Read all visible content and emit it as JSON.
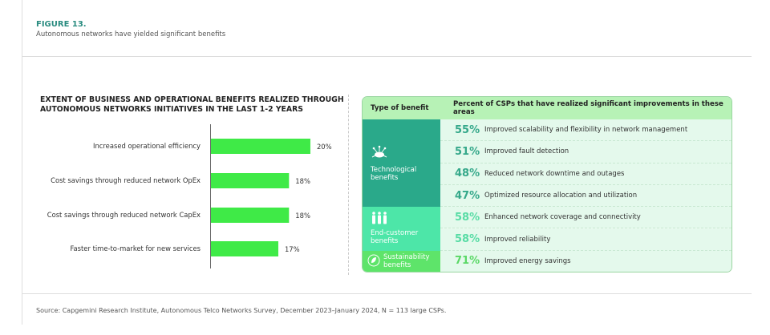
{
  "header": {
    "figure_label": "FIGURE 13.",
    "subtitle": "Autonomous networks have yielded significant benefits"
  },
  "chart_data": {
    "type": "bar",
    "title": "EXTENT OF BUSINESS AND OPERATIONAL BENEFITS REALIZED THROUGH AUTONOMOUS NETWORKS INITIATIVES IN THE LAST 1-2 YEARS",
    "categories": [
      "Increased operational efficiency",
      "Cost savings through reduced network OpEx",
      "Cost savings through reduced network CapEx",
      "Faster time-to-market for new services"
    ],
    "values": [
      20,
      18,
      18,
      17
    ],
    "value_labels": [
      "20%",
      "18%",
      "18%",
      "17%"
    ],
    "unit": "%",
    "orientation": "horizontal",
    "bar_color": "#3fea47",
    "grid": false
  },
  "table": {
    "headers": [
      "Type of benefit",
      "Percent of CSPs that have realized significant improvements in these areas"
    ],
    "groups": [
      {
        "label": "Technological benefits",
        "icon": "cloud-network-icon",
        "color": "#2aa98a",
        "pct_color": "#35a88a",
        "rows": [
          {
            "pct": "55%",
            "text": "Improved scalability and flexibility in network management"
          },
          {
            "pct": "51%",
            "text": "Improved fault detection"
          },
          {
            "pct": "48%",
            "text": "Reduced network downtime and outages"
          },
          {
            "pct": "47%",
            "text": "Optimized resource allocation and utilization"
          }
        ]
      },
      {
        "label": "End-customer benefits",
        "icon": "people-icon",
        "color": "#4de6a8",
        "pct_color": "#58dca5",
        "rows": [
          {
            "pct": "58%",
            "text": "Enhanced network coverage and connectivity"
          },
          {
            "pct": "58%",
            "text": "Improved reliability"
          }
        ]
      },
      {
        "label": "Sustainability benefits",
        "icon": "leaf-icon",
        "color": "#5ee46a",
        "pct_color": "#5ad866",
        "rows": [
          {
            "pct": "71%",
            "text": "Improved energy savings"
          }
        ]
      }
    ]
  },
  "source": "Source: Capgemini Research Institute, Autonomous Telco Networks Survey, December 2023–January 2024, N = 113 large CSPs."
}
